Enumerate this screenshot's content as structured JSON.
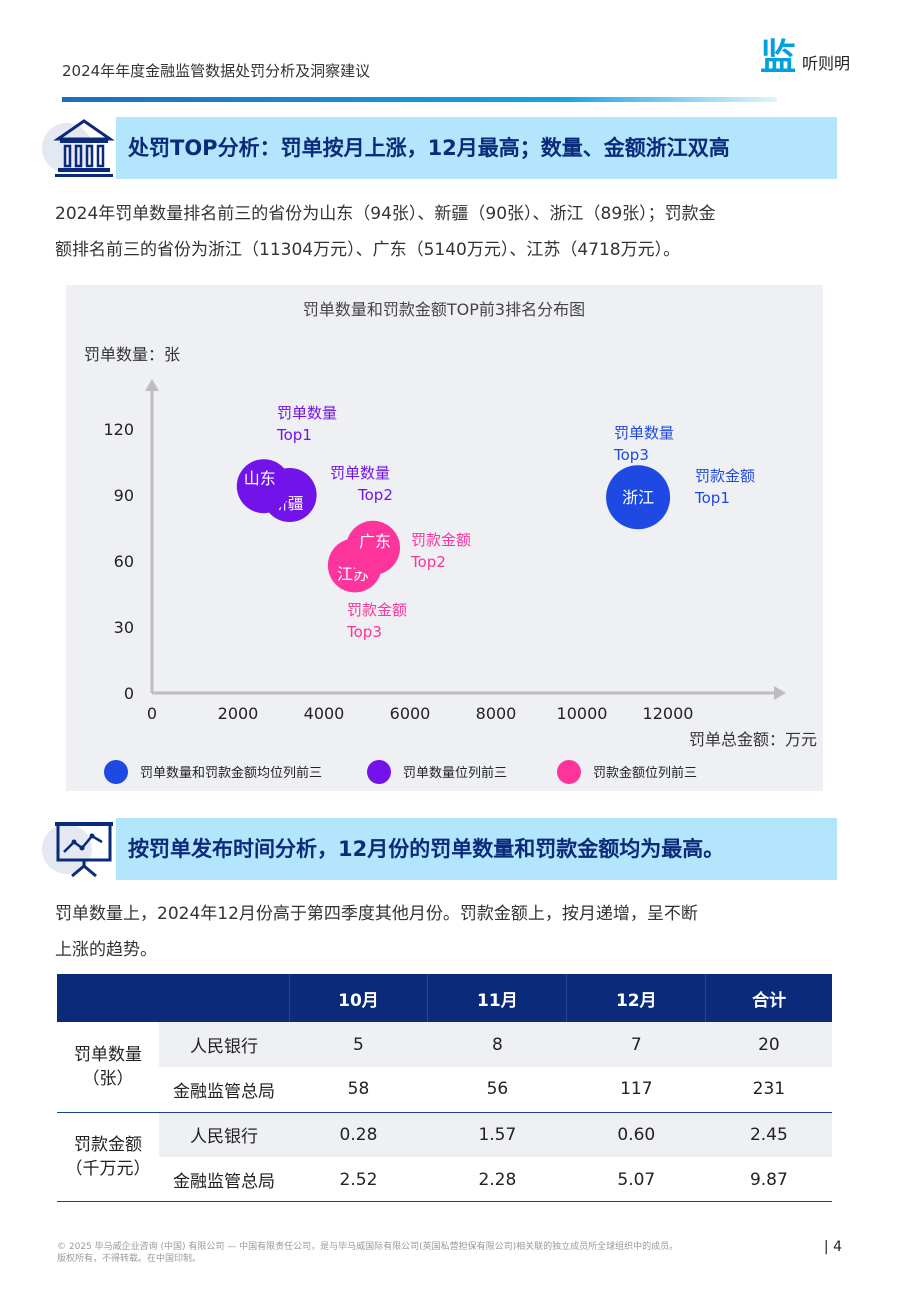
{
  "header": {
    "title": "2024年年度金融监管数据处罚分析及洞察建议",
    "logo_mark": "监",
    "logo_text": "听则明"
  },
  "section1": {
    "title": "处罚TOP分析：罚单按月上涨，12月最高；数量、金额浙江双高",
    "icon": "bank-building-icon",
    "para_line1": "2024年罚单数量排名前三的省份为山东（94张）、新疆（90张）、浙江（89张）；罚款金",
    "para_line2": "额排名前三的省份为浙江（11304万元）、广东（5140万元）、江苏（4718万元）。"
  },
  "chart_data": {
    "type": "scatter",
    "title": "罚单数量和罚款金额TOP前3排名分布图",
    "ylabel": "罚单数量：张",
    "xlabel": "罚单总金额：万元",
    "xlim": [
      0,
      14500
    ],
    "ylim": [
      0,
      140
    ],
    "x_ticks": [
      "0",
      "2000",
      "4000",
      "6000",
      "8000",
      "10000",
      "12000"
    ],
    "y_ticks": [
      "0",
      "30",
      "60",
      "90",
      "120"
    ],
    "points": [
      {
        "name": "山东",
        "x": 2600,
        "y": 94,
        "group": "count"
      },
      {
        "name": "新疆",
        "x": 3200,
        "y": 90,
        "group": "count"
      },
      {
        "name": "广东",
        "x": 5140,
        "y": 66,
        "group": "amount"
      },
      {
        "name": "江苏",
        "x": 4718,
        "y": 58,
        "group": "amount"
      },
      {
        "name": "浙江",
        "x": 11304,
        "y": 89,
        "group": "both"
      }
    ],
    "annotations": [
      {
        "line1": "罚单数量",
        "line2": "Top1",
        "group": "count"
      },
      {
        "line1": "罚单数量",
        "line2": "Top2",
        "group": "count"
      },
      {
        "line1": "罚单数量",
        "line2": "Top3",
        "group": "both"
      },
      {
        "line1": "罚款金额",
        "line2": "Top1",
        "group": "both"
      },
      {
        "line1": "罚款金额",
        "line2": "Top2",
        "group": "amount"
      },
      {
        "line1": "罚款金额",
        "line2": "Top3",
        "group": "amount"
      }
    ],
    "legend": [
      {
        "label": "罚单数量和罚款金额均位列前三",
        "group": "both"
      },
      {
        "label": "罚单数量位列前三",
        "group": "count"
      },
      {
        "label": "罚款金额位列前三",
        "group": "amount"
      }
    ],
    "legend_position": "bottom",
    "colors": {
      "both": "#1e49e2",
      "count": "#7213ea",
      "amount": "#fd349c"
    },
    "grid": false
  },
  "section2": {
    "title": "按罚单发布时间分析，12月份的罚单数量和罚款金额均为最高。",
    "icon": "presentation-chart-icon",
    "para_line1": "罚单数量上，2024年12月份高于第四季度其他月份。罚款金额上，按月递增，呈不断",
    "para_line2": "上涨的趋势。"
  },
  "table": {
    "headers": [
      "10月",
      "11月",
      "12月",
      "合计"
    ],
    "groups": [
      {
        "label_line1": "罚单数量",
        "label_line2": "（张）",
        "rows": [
          {
            "label": "人民银行",
            "values": [
              "5",
              "8",
              "7",
              "20"
            ]
          },
          {
            "label": "金融监管总局",
            "values": [
              "58",
              "56",
              "117",
              "231"
            ]
          }
        ]
      },
      {
        "label_line1": "罚款金额",
        "label_line2": "（千万元）",
        "rows": [
          {
            "label": "人民银行",
            "values": [
              "0.28",
              "1.57",
              "0.60",
              "2.45"
            ]
          },
          {
            "label": "金融监管总局",
            "values": [
              "2.52",
              "2.28",
              "5.07",
              "9.87"
            ]
          }
        ]
      }
    ]
  },
  "footer": {
    "line1": "© 2025 毕马威企业咨询 (中国) 有限公司 — 中国有限责任公司，是与毕马威国际有限公司(英国私营担保有限公司)相关联的独立成员所全球组织中的成员。",
    "line2": "版权所有，不得转载。在中国印制。",
    "page": "| 4"
  },
  "theme": {
    "accent": "#00a1de",
    "navy": "#0c2a7a",
    "band": "#b3e5fc"
  }
}
